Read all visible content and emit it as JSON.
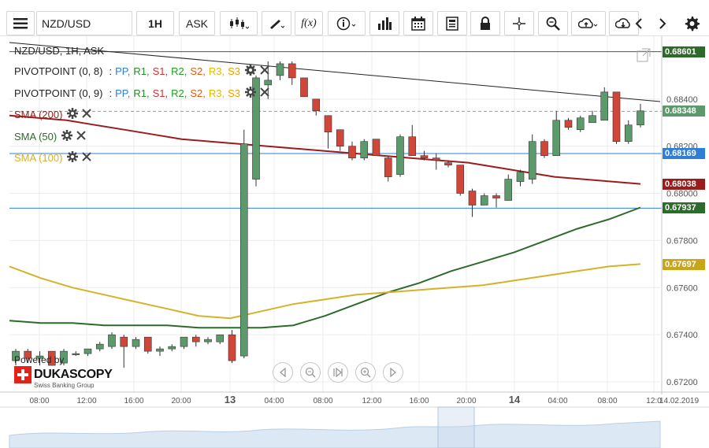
{
  "toolbar": {
    "symbol": "NZD/USD",
    "timeframe": "1H",
    "price_side": "ASK",
    "icons": [
      "menu-icon",
      "candle-type-icon",
      "draw-pen-icon",
      "function-icon",
      "info-icon",
      "volume-bars-icon",
      "calendar-icon",
      "news-icon",
      "lock-icon",
      "crosshair-icon",
      "zoom-icon",
      "upload-cloud-icon",
      "download-cloud-icon",
      "chevron-left-icon",
      "chevron-right-icon",
      "gear-icon"
    ],
    "function_label": "f(x)"
  },
  "chart_title": "NZD/USD, 1H, ASK",
  "indicators": {
    "pivot1": {
      "label": "PIVOTPOINT (0, 8)",
      "sep": ":",
      "PP": "PP,",
      "R1": "R1,",
      "S1": "S1,",
      "R2": "R2,",
      "S2": "S2,",
      "R3": "R3,",
      "S3": "S3"
    },
    "pivot2": {
      "label": "PIVOTPOINT (0, 9)",
      "sep": ":",
      "PP": "PP,",
      "R1": "R1,",
      "S1": "S1,",
      "R2": "R2,",
      "S2": "S2,",
      "R3": "R3,",
      "S3": "S3"
    },
    "sma200": {
      "label": "SMA (200)"
    },
    "sma50": {
      "label": "SMA (50)"
    },
    "sma100": {
      "label": "SMA (100)"
    }
  },
  "colors": {
    "bull": "#5c9a6c",
    "bear": "#d0473a",
    "sma200": "#9b1c1c",
    "sma50": "#2d6b2a",
    "sma100": "#d4b22a",
    "pp": "#2f7fd6",
    "r": "#2a8a2a",
    "s": "#d63030",
    "r2": "#1fa01f",
    "s2": "#e05a10",
    "r3": "#e6b800",
    "s3": "#f2a000"
  },
  "price_tags": [
    {
      "value": "0.68601",
      "color": "#2d6b2a"
    },
    {
      "value": "0.68348",
      "color": "#5c9a6c"
    },
    {
      "value": "0.68169",
      "color": "#2f7fd6"
    },
    {
      "value": "0.68038",
      "color": "#9b1c1c"
    },
    {
      "value": "0.67937",
      "color": "#2d6b2a"
    },
    {
      "value": "0.67697",
      "color": "#c9a616"
    }
  ],
  "powered": {
    "text": "Powered by",
    "brand": "DUKASCOPY",
    "sub": "Swiss Banking Group"
  },
  "chart_data": {
    "type": "candlestick",
    "title": "NZD/USD, 1H, ASK",
    "y_ticks": [
      "0.68400",
      "0.68200",
      "0.68000",
      "0.67800",
      "0.67600",
      "0.67400",
      "0.67200"
    ],
    "x_ticks": [
      "08:00",
      "12:00",
      "16:00",
      "20:00",
      "13",
      "04:00",
      "08:00",
      "12:00",
      "16:00",
      "20:00",
      "14",
      "04:00",
      "08:00",
      "12:0",
      "14.02.2019"
    ],
    "ylim": [
      0.6716,
      0.6866
    ],
    "horizontal_lines": [
      0.68601,
      0.68348,
      0.68169,
      0.67937
    ],
    "candles": [
      {
        "o": 0.6729,
        "h": 0.6734,
        "l": 0.6727,
        "c": 0.6733
      },
      {
        "o": 0.6733,
        "h": 0.6734,
        "l": 0.6728,
        "c": 0.673
      },
      {
        "o": 0.673,
        "h": 0.6733,
        "l": 0.6727,
        "c": 0.6731
      },
      {
        "o": 0.6733,
        "h": 0.6733,
        "l": 0.6727,
        "c": 0.6727
      },
      {
        "o": 0.6728,
        "h": 0.6734,
        "l": 0.6727,
        "c": 0.6733
      },
      {
        "o": 0.6732,
        "h": 0.6733,
        "l": 0.6731,
        "c": 0.6732
      },
      {
        "o": 0.6732,
        "h": 0.6734,
        "l": 0.6731,
        "c": 0.6734
      },
      {
        "o": 0.6734,
        "h": 0.6737,
        "l": 0.6733,
        "c": 0.6736
      },
      {
        "o": 0.6735,
        "h": 0.6741,
        "l": 0.6734,
        "c": 0.674
      },
      {
        "o": 0.6739,
        "h": 0.674,
        "l": 0.6726,
        "c": 0.6735
      },
      {
        "o": 0.6735,
        "h": 0.6739,
        "l": 0.6734,
        "c": 0.6738
      },
      {
        "o": 0.6739,
        "h": 0.6739,
        "l": 0.6732,
        "c": 0.6733
      },
      {
        "o": 0.6733,
        "h": 0.6735,
        "l": 0.6731,
        "c": 0.6734
      },
      {
        "o": 0.6734,
        "h": 0.6736,
        "l": 0.6733,
        "c": 0.6735
      },
      {
        "o": 0.6735,
        "h": 0.6739,
        "l": 0.6734,
        "c": 0.6739
      },
      {
        "o": 0.6739,
        "h": 0.674,
        "l": 0.6735,
        "c": 0.6737
      },
      {
        "o": 0.6737,
        "h": 0.6739,
        "l": 0.6736,
        "c": 0.6738
      },
      {
        "o": 0.6737,
        "h": 0.6739,
        "l": 0.6736,
        "c": 0.674
      },
      {
        "o": 0.674,
        "h": 0.6742,
        "l": 0.6728,
        "c": 0.6729
      },
      {
        "o": 0.6731,
        "h": 0.6827,
        "l": 0.673,
        "c": 0.6821
      },
      {
        "o": 0.6806,
        "h": 0.685,
        "l": 0.6803,
        "c": 0.6849
      },
      {
        "o": 0.6846,
        "h": 0.6856,
        "l": 0.684,
        "c": 0.6848
      },
      {
        "o": 0.685,
        "h": 0.6856,
        "l": 0.6848,
        "c": 0.6855
      },
      {
        "o": 0.6855,
        "h": 0.6856,
        "l": 0.6846,
        "c": 0.6849
      },
      {
        "o": 0.6849,
        "h": 0.6849,
        "l": 0.6841,
        "c": 0.6841
      },
      {
        "o": 0.684,
        "h": 0.684,
        "l": 0.6833,
        "c": 0.6835
      },
      {
        "o": 0.6833,
        "h": 0.6833,
        "l": 0.6819,
        "c": 0.6826
      },
      {
        "o": 0.6827,
        "h": 0.6827,
        "l": 0.6818,
        "c": 0.682
      },
      {
        "o": 0.682,
        "h": 0.6822,
        "l": 0.6814,
        "c": 0.6815
      },
      {
        "o": 0.6815,
        "h": 0.6823,
        "l": 0.6814,
        "c": 0.6822
      },
      {
        "o": 0.6823,
        "h": 0.6823,
        "l": 0.6816,
        "c": 0.6816
      },
      {
        "o": 0.6815,
        "h": 0.6816,
        "l": 0.6805,
        "c": 0.6807
      },
      {
        "o": 0.6808,
        "h": 0.6825,
        "l": 0.6807,
        "c": 0.6824
      },
      {
        "o": 0.6824,
        "h": 0.6829,
        "l": 0.6816,
        "c": 0.6816
      },
      {
        "o": 0.6816,
        "h": 0.6818,
        "l": 0.6814,
        "c": 0.6815
      },
      {
        "o": 0.6815,
        "h": 0.6817,
        "l": 0.681,
        "c": 0.6814
      },
      {
        "o": 0.6813,
        "h": 0.6814,
        "l": 0.6811,
        "c": 0.6812
      },
      {
        "o": 0.6812,
        "h": 0.6812,
        "l": 0.6799,
        "c": 0.68
      },
      {
        "o": 0.6801,
        "h": 0.6802,
        "l": 0.679,
        "c": 0.6795
      },
      {
        "o": 0.6795,
        "h": 0.68,
        "l": 0.6795,
        "c": 0.6799
      },
      {
        "o": 0.6799,
        "h": 0.68,
        "l": 0.6794,
        "c": 0.6798
      },
      {
        "o": 0.6797,
        "h": 0.6808,
        "l": 0.6797,
        "c": 0.6806
      },
      {
        "o": 0.6805,
        "h": 0.681,
        "l": 0.6803,
        "c": 0.6809
      },
      {
        "o": 0.6806,
        "h": 0.6825,
        "l": 0.6804,
        "c": 0.6822
      },
      {
        "o": 0.6822,
        "h": 0.6823,
        "l": 0.6815,
        "c": 0.6816
      },
      {
        "o": 0.6816,
        "h": 0.6835,
        "l": 0.6816,
        "c": 0.6831
      },
      {
        "o": 0.6831,
        "h": 0.6832,
        "l": 0.6827,
        "c": 0.6828
      },
      {
        "o": 0.6827,
        "h": 0.6833,
        "l": 0.6826,
        "c": 0.6832
      },
      {
        "o": 0.683,
        "h": 0.6835,
        "l": 0.683,
        "c": 0.6833
      },
      {
        "o": 0.6831,
        "h": 0.6845,
        "l": 0.6831,
        "c": 0.6843
      },
      {
        "o": 0.6843,
        "h": 0.6843,
        "l": 0.6821,
        "c": 0.6822
      },
      {
        "o": 0.6822,
        "h": 0.6831,
        "l": 0.6821,
        "c": 0.6829
      },
      {
        "o": 0.6829,
        "h": 0.6838,
        "l": 0.6828,
        "c": 0.6835
      }
    ],
    "series": [
      {
        "name": "SMA (200)",
        "values": [
          0.6833,
          0.6832,
          0.6831,
          0.6829,
          0.6827,
          0.6825,
          0.6823,
          0.6822,
          0.6821,
          0.682,
          0.6819,
          0.6818,
          0.6817,
          0.6816,
          0.6815,
          0.6814,
          0.6813,
          0.6811,
          0.6809,
          0.6807,
          0.6806,
          0.6805,
          0.6804
        ]
      },
      {
        "name": "SMA (50)",
        "values": [
          0.6746,
          0.6745,
          0.6745,
          0.6744,
          0.6744,
          0.6744,
          0.6743,
          0.6743,
          0.6743,
          0.6744,
          0.6748,
          0.6753,
          0.6758,
          0.6762,
          0.6767,
          0.6771,
          0.6775,
          0.678,
          0.6785,
          0.6789,
          0.6794
        ]
      },
      {
        "name": "SMA (100)",
        "values": [
          0.6769,
          0.6764,
          0.676,
          0.6757,
          0.6754,
          0.6751,
          0.6748,
          0.6747,
          0.675,
          0.6753,
          0.6755,
          0.6757,
          0.6758,
          0.6759,
          0.676,
          0.6761,
          0.6763,
          0.6765,
          0.6767,
          0.6769,
          0.677
        ]
      }
    ],
    "grid": true
  }
}
